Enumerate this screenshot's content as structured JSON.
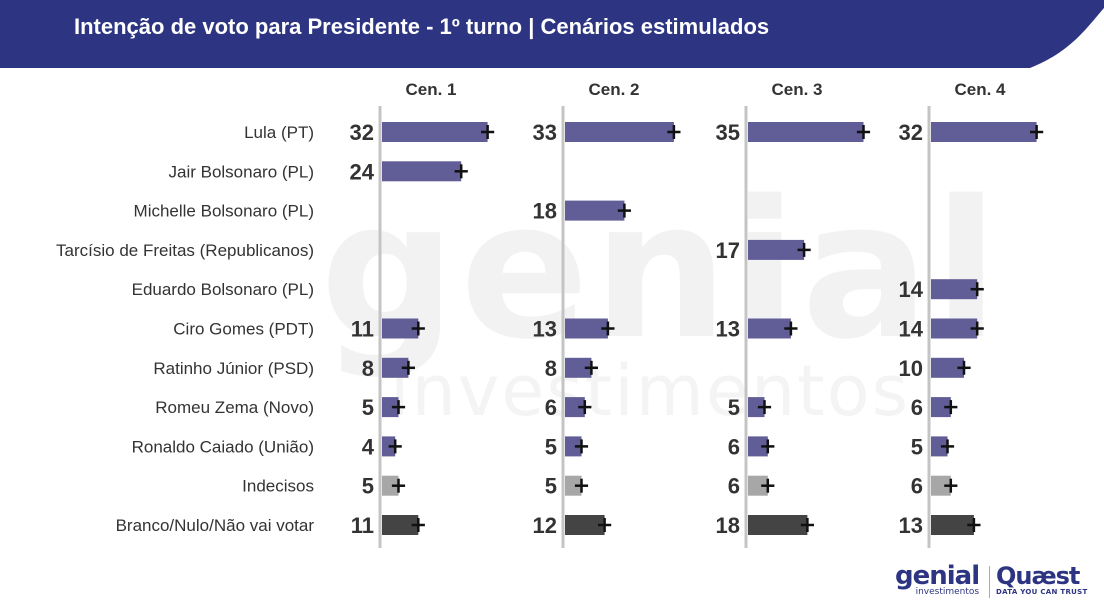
{
  "header": {
    "title": "Intenção de voto para Presidente - 1º turno | Cenários estimulados",
    "background_color": "#2d3582"
  },
  "watermark": {
    "big": "genial",
    "small": "investimentos"
  },
  "colors": {
    "candidate": "#615d96",
    "indecisos": "#a7a7a7",
    "branco": "#444444",
    "axis_line": "#c4c4c4",
    "error_bar": "#111111"
  },
  "chart_data": {
    "type": "bar",
    "orientation": "horizontal",
    "categories": [
      "Lula (PT)",
      "Jair Bolsonaro (PL)",
      "Michelle Bolsonaro (PL)",
      "Tarcísio de Freitas (Republicanos)",
      "Eduardo Bolsonaro (PL)",
      "Ciro Gomes (PDT)",
      "Ratinho Júnior (PSD)",
      "Romeu Zema (Novo)",
      "Ronaldo Caiado (União)",
      "Indecisos",
      "Branco/Nulo/Não vai votar"
    ],
    "category_type": [
      "candidate",
      "candidate",
      "candidate",
      "candidate",
      "candidate",
      "candidate",
      "candidate",
      "candidate",
      "candidate",
      "indecisos",
      "branco"
    ],
    "series": [
      {
        "name": "Cen. 1",
        "values": [
          32,
          24,
          null,
          null,
          null,
          11,
          8,
          5,
          4,
          5,
          11
        ]
      },
      {
        "name": "Cen. 2",
        "values": [
          33,
          null,
          18,
          null,
          null,
          13,
          8,
          6,
          5,
          5,
          12
        ]
      },
      {
        "name": "Cen. 3",
        "values": [
          35,
          null,
          null,
          17,
          null,
          13,
          null,
          5,
          6,
          6,
          18
        ]
      },
      {
        "name": "Cen. 4",
        "values": [
          32,
          null,
          null,
          null,
          14,
          14,
          10,
          6,
          5,
          6,
          13
        ]
      }
    ],
    "error_margin": 2,
    "xlim": [
      0,
      40
    ],
    "grid": false
  },
  "logos": {
    "genial_main": "genial",
    "genial_sub": "investimentos",
    "quaest_main": "Quæst",
    "quaest_sub": "DATA YOU CAN TRUST"
  }
}
